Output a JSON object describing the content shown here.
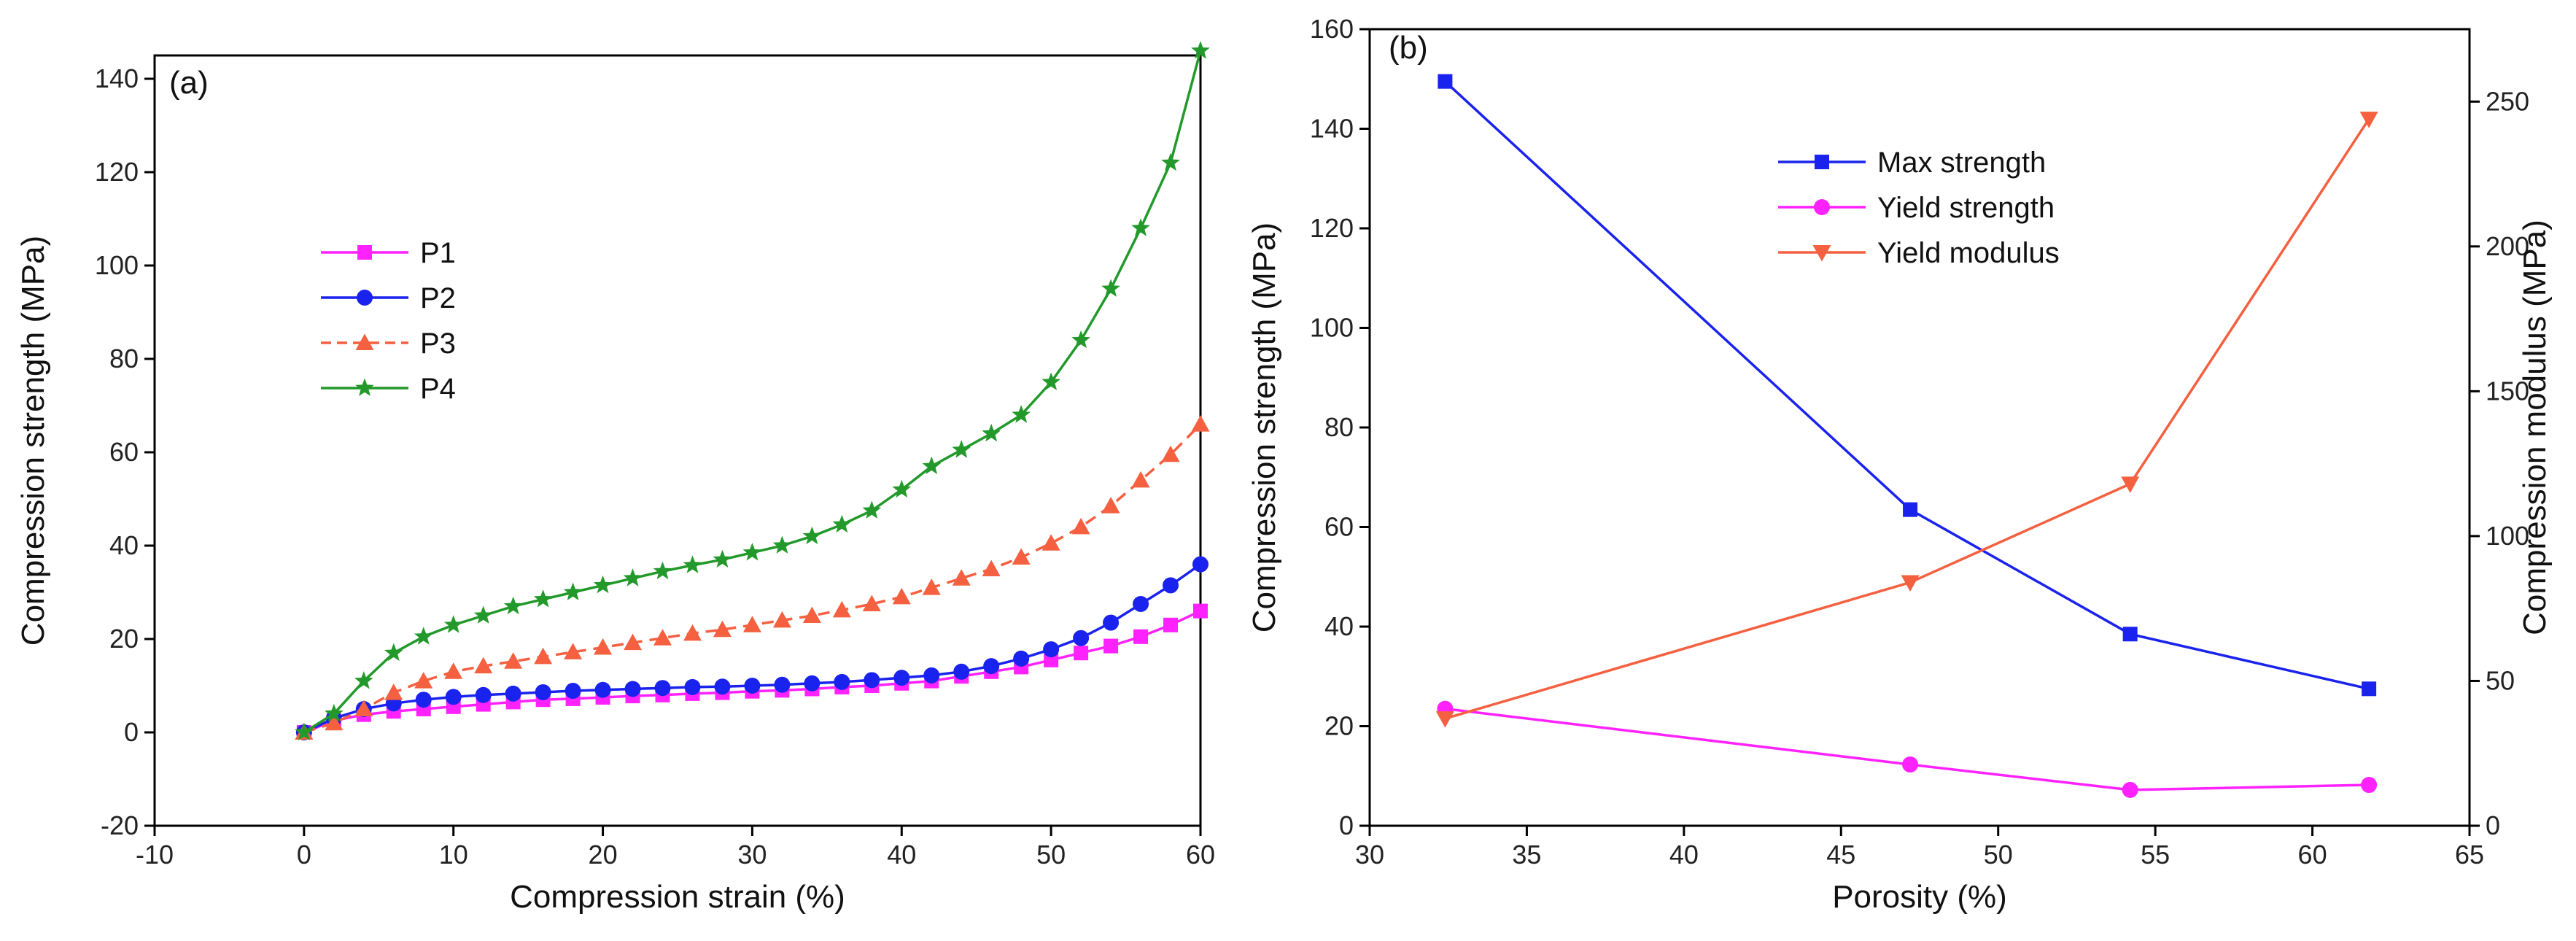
{
  "chart_data": [
    {
      "type": "line",
      "panel_label": "(a)",
      "xlabel": "Compression strain (%)",
      "ylabel": "Compression strength (MPa)",
      "xlim": [
        -10,
        60
      ],
      "ylim": [
        -20,
        145
      ],
      "xticks": [
        -10,
        0,
        10,
        20,
        30,
        40,
        50,
        60
      ],
      "yticks": [
        -20,
        0,
        20,
        40,
        60,
        80,
        100,
        120,
        140
      ],
      "legend_position": "center-left",
      "series": [
        {
          "name": "P1",
          "color": "#ff22ff",
          "marker": "square",
          "dashed": false,
          "x": [
            0,
            2,
            4,
            6,
            8,
            10,
            12,
            14,
            16,
            18,
            20,
            22,
            24,
            26,
            28,
            30,
            32,
            34,
            36,
            38,
            40,
            42,
            44,
            46,
            48,
            50,
            52,
            54,
            56,
            58,
            60
          ],
          "y": [
            0,
            2.5,
            3.8,
            4.5,
            5.0,
            5.5,
            6.0,
            6.5,
            7.0,
            7.2,
            7.5,
            7.8,
            8.0,
            8.3,
            8.5,
            8.8,
            9.0,
            9.3,
            9.7,
            10.0,
            10.5,
            11.0,
            12.0,
            13.0,
            14.0,
            15.5,
            17.0,
            18.5,
            20.5,
            23.0,
            26.0
          ]
        },
        {
          "name": "P2",
          "color": "#1a22ee",
          "marker": "circle",
          "dashed": false,
          "x": [
            0,
            2,
            4,
            6,
            8,
            10,
            12,
            14,
            16,
            18,
            20,
            22,
            24,
            26,
            28,
            30,
            32,
            34,
            36,
            38,
            40,
            42,
            44,
            46,
            48,
            50,
            52,
            54,
            56,
            58,
            60
          ],
          "y": [
            0,
            3.0,
            5.0,
            6.2,
            7.0,
            7.6,
            8.0,
            8.3,
            8.6,
            8.9,
            9.1,
            9.3,
            9.5,
            9.7,
            9.8,
            10.0,
            10.2,
            10.5,
            10.8,
            11.2,
            11.7,
            12.2,
            13.0,
            14.2,
            15.8,
            17.8,
            20.2,
            23.5,
            27.5,
            31.5,
            36.0
          ]
        },
        {
          "name": "P3",
          "color": "#f46040",
          "marker": "triangle",
          "dashed": true,
          "x": [
            0,
            2,
            4,
            6,
            8,
            10,
            12,
            14,
            16,
            18,
            20,
            22,
            24,
            26,
            28,
            30,
            32,
            34,
            36,
            38,
            40,
            42,
            44,
            46,
            48,
            50,
            52,
            54,
            56,
            58,
            60
          ],
          "y": [
            0,
            2.0,
            5.0,
            8.5,
            11.0,
            13.0,
            14.2,
            15.2,
            16.2,
            17.2,
            18.2,
            19.2,
            20.2,
            21.2,
            22.0,
            23.0,
            24.0,
            25.0,
            26.2,
            27.5,
            29.0,
            31.0,
            33.0,
            35.0,
            37.5,
            40.5,
            44.0,
            48.5,
            54.0,
            59.5,
            66.0
          ]
        },
        {
          "name": "P4",
          "color": "#22992a",
          "marker": "star",
          "dashed": false,
          "x": [
            0,
            2,
            4,
            6,
            8,
            10,
            12,
            14,
            16,
            18,
            20,
            22,
            24,
            26,
            28,
            30,
            32,
            34,
            36,
            38,
            40,
            42,
            44,
            46,
            48,
            50,
            52,
            54,
            56,
            58,
            60
          ],
          "y": [
            0,
            4.0,
            11.0,
            17.0,
            20.5,
            23.0,
            25.0,
            27.0,
            28.5,
            30.0,
            31.5,
            33.0,
            34.5,
            35.8,
            37.0,
            38.5,
            40.0,
            42.0,
            44.5,
            47.5,
            52.0,
            57.0,
            60.5,
            64.0,
            68.0,
            75.0,
            84.0,
            95.0,
            108.0,
            122.0,
            146.0
          ]
        }
      ]
    },
    {
      "type": "line",
      "panel_label": "(b)",
      "xlabel": "Porosity (%)",
      "ylabel": "Compression strength (MPa)",
      "ylabel_right": "Compression modulus (MPa)",
      "xlim": [
        30,
        65
      ],
      "ylim": [
        0,
        160
      ],
      "ylim_right": [
        0,
        275
      ],
      "xticks": [
        30,
        35,
        40,
        45,
        50,
        55,
        60,
        65
      ],
      "yticks": [
        0,
        20,
        40,
        60,
        80,
        100,
        120,
        140,
        160
      ],
      "yticks_right": [
        0,
        50,
        100,
        150,
        200,
        250
      ],
      "legend_position": "top-center",
      "series": [
        {
          "name": "Max strength",
          "color": "#1a22ee",
          "marker": "square",
          "axis": "left",
          "x": [
            32.4,
            47.2,
            54.2,
            61.8
          ],
          "y": [
            149.5,
            63.5,
            38.5,
            27.5
          ]
        },
        {
          "name": "Yield strength",
          "color": "#ff22ff",
          "marker": "circle",
          "axis": "left",
          "x": [
            32.4,
            47.2,
            54.2,
            61.8
          ],
          "y": [
            23.5,
            12.3,
            7.2,
            8.2
          ]
        },
        {
          "name": "Yield modulus",
          "color": "#f46040",
          "marker": "triangle-down",
          "axis": "right",
          "x": [
            32.4,
            47.2,
            54.2,
            61.8
          ],
          "y": [
            37.0,
            84.0,
            118.0,
            244.0
          ]
        }
      ]
    }
  ]
}
